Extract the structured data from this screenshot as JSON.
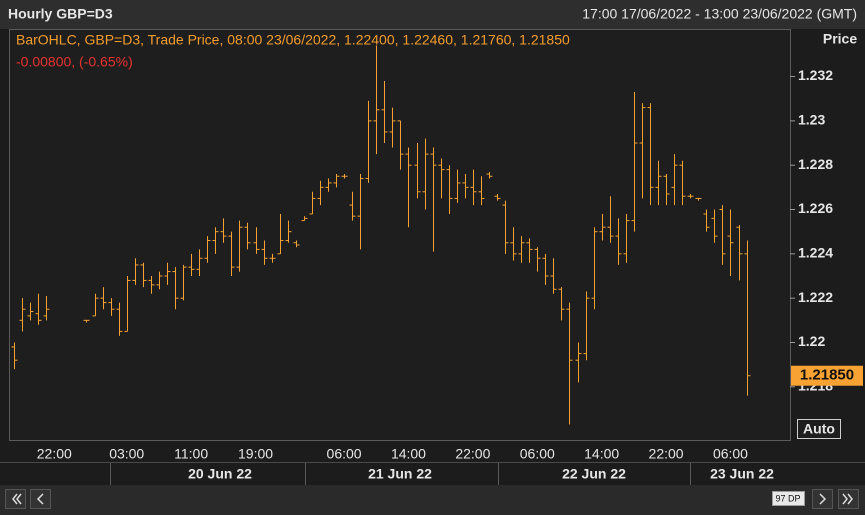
{
  "header": {
    "title": "Hourly GBP=D3",
    "range": "17:00 17/06/2022 - 13:00 23/06/2022 (GMT)"
  },
  "chart_data": {
    "type": "ohlc",
    "legend_text": "BarOHLC, GBP=D3, Trade Price, 08:00 23/06/2022, 1.22400, 1.22460, 1.21760, 1.21850",
    "change_text": "-0.00800, (-0.65%)",
    "y_axis_title": "Price",
    "color": "#f7a233",
    "categories": [
      null,
      null,
      null,
      null,
      null,
      "22:00",
      null,
      null,
      null,
      null,
      null,
      null,
      null,
      null,
      "03:00",
      null,
      null,
      null,
      null,
      null,
      null,
      null,
      "11:00",
      null,
      null,
      null,
      null,
      null,
      null,
      null,
      "19:00",
      null,
      null,
      null,
      null,
      null,
      null,
      null,
      null,
      null,
      null,
      "06:00",
      null,
      null,
      null,
      null,
      null,
      null,
      null,
      "14:00",
      null,
      null,
      null,
      null,
      null,
      null,
      null,
      "22:00",
      null,
      null,
      null,
      null,
      null,
      null,
      null,
      "06:00",
      null,
      null,
      null,
      null,
      null,
      null,
      null,
      "14:00",
      null,
      null,
      null,
      null,
      null,
      null,
      null,
      "22:00",
      null,
      null,
      null,
      null,
      null,
      null,
      null,
      "06:00",
      null,
      null
    ],
    "date_labels": [
      "20 Jun 22",
      "21 Jun 22",
      "22 Jun 22",
      "23 Jun 22"
    ],
    "ohlc": [
      [
        1.2198,
        1.22,
        1.2188,
        1.2192
      ],
      [
        1.221,
        1.222,
        1.2205,
        1.2215
      ],
      [
        1.2212,
        1.2218,
        1.221,
        1.2214
      ],
      [
        1.2213,
        1.2222,
        1.2208,
        1.221
      ],
      [
        1.2212,
        1.2221,
        1.221,
        1.2215
      ],
      null,
      null,
      null,
      null,
      [
        1.221,
        1.221,
        1.2209,
        1.221
      ],
      [
        1.2212,
        1.2222,
        1.2212,
        1.222
      ],
      [
        1.222,
        1.2225,
        1.2215,
        1.2218
      ],
      [
        1.2218,
        1.222,
        1.2212,
        1.2215
      ],
      [
        1.2215,
        1.2218,
        1.2203,
        1.2205
      ],
      [
        1.2205,
        1.223,
        1.2205,
        1.2228
      ],
      [
        1.2228,
        1.2238,
        1.2226,
        1.2235
      ],
      [
        1.2235,
        1.2236,
        1.2225,
        1.2228
      ],
      [
        1.2228,
        1.223,
        1.2222,
        1.2226
      ],
      [
        1.2226,
        1.2232,
        1.2224,
        1.223
      ],
      [
        1.223,
        1.2236,
        1.2226,
        1.2232
      ],
      [
        1.2232,
        1.2234,
        1.2215,
        1.222
      ],
      [
        1.222,
        1.2235,
        1.2219,
        1.2234
      ],
      [
        1.2234,
        1.224,
        1.223,
        1.2233
      ],
      [
        1.2233,
        1.2242,
        1.223,
        1.2238
      ],
      [
        1.2238,
        1.2248,
        1.2236,
        1.2246
      ],
      [
        1.2246,
        1.2252,
        1.224,
        1.225
      ],
      [
        1.225,
        1.2256,
        1.2245,
        1.2248
      ],
      [
        1.2248,
        1.225,
        1.223,
        1.2234
      ],
      [
        1.2234,
        1.2255,
        1.2232,
        1.2252
      ],
      [
        1.2252,
        1.2254,
        1.2242,
        1.2245
      ],
      [
        1.2245,
        1.2252,
        1.224,
        1.2242
      ],
      [
        1.2242,
        1.2246,
        1.2235,
        1.2238
      ],
      [
        1.2238,
        1.224,
        1.2236,
        1.2238
      ],
      [
        1.224,
        1.2258,
        1.224,
        1.2246
      ],
      [
        1.2246,
        1.2255,
        1.2245,
        1.225
      ],
      [
        1.2245,
        1.2246,
        1.2243,
        1.2244
      ],
      [
        1.2255,
        1.2257,
        1.2255,
        1.2256
      ],
      [
        1.2258,
        1.2268,
        1.2258,
        1.2265
      ],
      [
        1.2265,
        1.2273,
        1.2262,
        1.227
      ],
      [
        1.227,
        1.2274,
        1.2268,
        1.2272
      ],
      [
        1.2272,
        1.2276,
        1.227,
        1.2275
      ],
      [
        1.2275,
        1.2276,
        1.2274,
        1.2275
      ],
      [
        1.2262,
        1.2268,
        1.2255,
        1.2257
      ],
      [
        1.2257,
        1.2276,
        1.2242,
        1.2274
      ],
      [
        1.2274,
        1.2309,
        1.2272,
        1.23
      ],
      [
        1.23,
        1.2334,
        1.2285,
        1.2305
      ],
      [
        1.2305,
        1.2318,
        1.229,
        1.2295
      ],
      [
        1.2295,
        1.2306,
        1.2288,
        1.23
      ],
      [
        1.23,
        1.23,
        1.2278,
        1.2285
      ],
      [
        1.2285,
        1.2288,
        1.2252,
        1.228
      ],
      [
        1.228,
        1.229,
        1.2265,
        1.2268
      ],
      [
        1.2268,
        1.2292,
        1.226,
        1.2285
      ],
      [
        1.2285,
        1.2288,
        1.2241,
        1.228
      ],
      [
        1.228,
        1.2283,
        1.2265,
        1.2278
      ],
      [
        1.2278,
        1.228,
        1.2258,
        1.2265
      ],
      [
        1.2265,
        1.2278,
        1.2263,
        1.2272
      ],
      [
        1.2272,
        1.2276,
        1.2265,
        1.227
      ],
      [
        1.227,
        1.2278,
        1.2262,
        1.2268
      ],
      [
        1.2268,
        1.2275,
        1.2262,
        1.2265
      ],
      [
        1.2276,
        1.2277,
        1.2274,
        1.2275
      ],
      [
        1.2266,
        1.2267,
        1.2264,
        1.2265
      ],
      [
        1.2262,
        1.2264,
        1.224,
        1.2245
      ],
      [
        1.2245,
        1.2252,
        1.2237,
        1.224
      ],
      [
        1.224,
        1.2248,
        1.2236,
        1.2245
      ],
      [
        1.2245,
        1.2247,
        1.2236,
        1.2242
      ],
      [
        1.2242,
        1.2243,
        1.2232,
        1.2238
      ],
      [
        1.2238,
        1.224,
        1.2226,
        1.223
      ],
      [
        1.223,
        1.2238,
        1.2222,
        1.2224
      ],
      [
        1.2224,
        1.2225,
        1.221,
        1.2215
      ],
      [
        1.2215,
        1.2218,
        1.2163,
        1.2192
      ],
      [
        1.2192,
        1.22,
        1.2182,
        1.2195
      ],
      [
        1.2195,
        1.2223,
        1.2192,
        1.222
      ],
      [
        1.222,
        1.2252,
        1.2215,
        1.225
      ],
      [
        1.225,
        1.2258,
        1.2246,
        1.2252
      ],
      [
        1.2252,
        1.2266,
        1.2245,
        1.2248
      ],
      [
        1.2248,
        1.2256,
        1.2235,
        1.224
      ],
      [
        1.224,
        1.2258,
        1.2236,
        1.2255
      ],
      [
        1.2255,
        1.2313,
        1.225,
        1.229
      ],
      [
        1.229,
        1.2308,
        1.2265,
        1.2306
      ],
      [
        1.2306,
        1.2308,
        1.2262,
        1.227
      ],
      [
        1.227,
        1.2282,
        1.2262,
        1.2275
      ],
      [
        1.2275,
        1.2276,
        1.2262,
        1.2267
      ],
      [
        1.227,
        1.2285,
        1.2262,
        1.228
      ],
      [
        1.228,
        1.2282,
        1.2262,
        1.2266
      ],
      [
        1.2266,
        1.2267,
        1.2265,
        1.2266
      ],
      [
        1.2265,
        1.2265,
        1.2264,
        1.2265
      ],
      [
        1.2258,
        1.226,
        1.225,
        1.2252
      ],
      [
        1.2256,
        1.226,
        1.2245,
        1.2248
      ],
      [
        1.226,
        1.2262,
        1.2235,
        1.224
      ],
      [
        1.2248,
        1.226,
        1.223,
        1.2245
      ],
      [
        1.2252,
        1.2253,
        1.2228,
        1.224
      ],
      [
        1.224,
        1.2246,
        1.2176,
        1.2185
      ]
    ],
    "ylim": [
      1.2156,
      1.2341
    ],
    "yticks": [
      1.218,
      1.22,
      1.222,
      1.224,
      1.226,
      1.228,
      1.23,
      1.232
    ],
    "last_price": {
      "value": 1.2185,
      "label": "1.21850"
    },
    "auto_button": "Auto",
    "data_points": "97 DP"
  }
}
